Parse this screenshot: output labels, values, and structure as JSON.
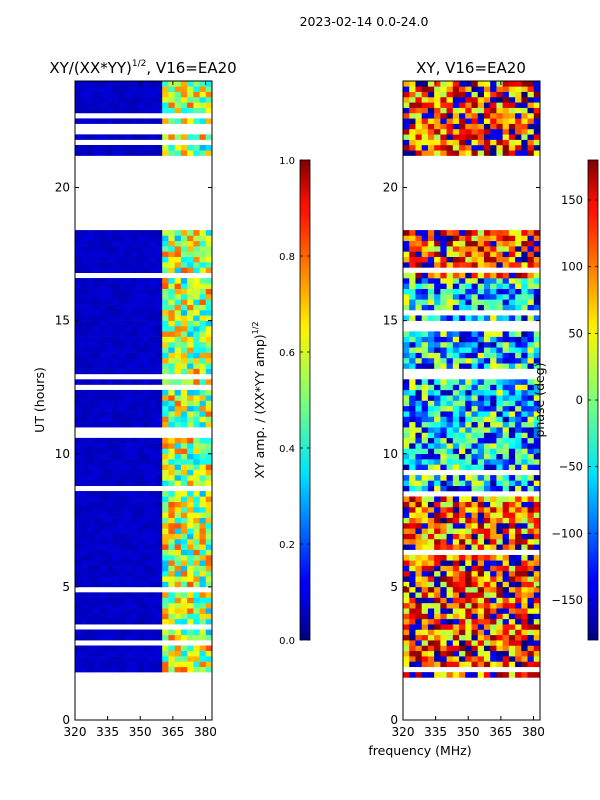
{
  "figure": {
    "suptitle": "2023-02-14 0.0-24.0",
    "shared_xlabel": "frequency (MHz)"
  },
  "chart_data": [
    {
      "type": "heatmap",
      "id": "amp",
      "title_main": "XY/(XX*YY)",
      "title_sup": "1/2",
      "title_rest": ", V16=EA20",
      "ylabel": "UT (hours)",
      "xlim": [
        320,
        383
      ],
      "ylim": [
        0,
        24
      ],
      "xticks": [
        320,
        335,
        350,
        365,
        380
      ],
      "yticks": [
        0,
        5,
        10,
        15,
        20
      ],
      "colorbar": {
        "label_main": "XY amp. / (XX*YY amp)",
        "label_sup": "1/2",
        "range": [
          0.0,
          1.0
        ],
        "ticks": [
          0.0,
          0.2,
          0.4,
          0.6,
          0.8,
          1.0
        ],
        "tick_labels": [
          "0.0",
          "0.2",
          "0.4",
          "0.6",
          "0.8",
          "1.0"
        ],
        "colormap": "jet"
      },
      "data_hours": [
        [
          1.4,
          18.4
        ],
        [
          21.2,
          24.0
        ]
      ],
      "bright_freq_start": 360,
      "typical_value_low_band": 0.05,
      "typical_value_high_band": 0.55
    },
    {
      "type": "heatmap",
      "id": "phase",
      "title_main": "XY, V16=EA20",
      "ylabel": "",
      "xlim": [
        320,
        383
      ],
      "ylim": [
        0,
        24
      ],
      "xticks": [
        320,
        335,
        350,
        365,
        380
      ],
      "yticks": [
        0,
        5,
        10,
        15,
        20
      ],
      "colorbar": {
        "label_main": "phase (deg)",
        "range": [
          -180,
          180
        ],
        "ticks": [
          -150,
          -100,
          -50,
          0,
          50,
          100,
          150
        ],
        "tick_labels": [
          "−150",
          "−100",
          "−50",
          "0",
          "50",
          "100",
          "150"
        ],
        "colormap": "jet"
      },
      "data_hours": [
        [
          1.4,
          18.4
        ],
        [
          21.2,
          24.0
        ]
      ],
      "typical_value_mid_hours": -60,
      "typical_value_other_hours": 120
    }
  ],
  "colors": {
    "axes": "#000000",
    "background": "#ffffff"
  }
}
